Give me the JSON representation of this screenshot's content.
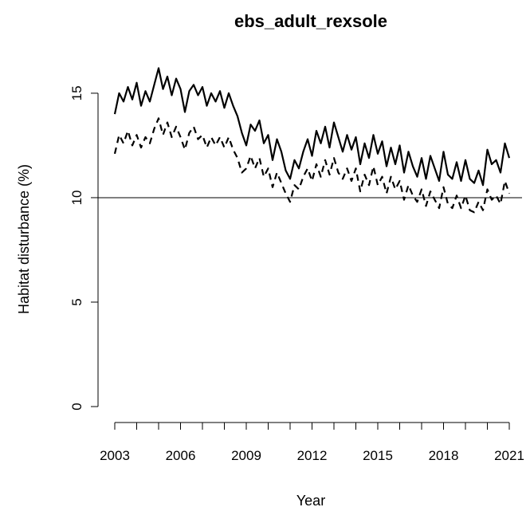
{
  "chart_data": {
    "type": "line",
    "title": "ebs_adult_rexsole",
    "xlabel": "Year",
    "ylabel": "Habitat disturbance (%)",
    "xlim": [
      2002.9,
      2021.2
    ],
    "ylim": [
      0,
      16.6
    ],
    "x_ticks": [
      "2003",
      "2006",
      "2009",
      "2012",
      "2015",
      "2018",
      "2021"
    ],
    "y_ticks": [
      "0",
      "5",
      "10",
      "15"
    ],
    "reference_line_y": 10,
    "grid": false,
    "legend": "none",
    "series": [
      {
        "style": "solid",
        "x": [
          2003.0,
          2003.2,
          2003.4,
          2003.6,
          2003.8,
          2004.0,
          2004.2,
          2004.4,
          2004.6,
          2004.8,
          2005.0,
          2005.2,
          2005.4,
          2005.6,
          2005.8,
          2006.0,
          2006.2,
          2006.4,
          2006.6,
          2006.8,
          2007.0,
          2007.2,
          2007.4,
          2007.6,
          2007.8,
          2008.0,
          2008.2,
          2008.4,
          2008.6,
          2008.8,
          2009.0,
          2009.2,
          2009.4,
          2009.6,
          2009.8,
          2010.0,
          2010.2,
          2010.4,
          2010.6,
          2010.8,
          2011.0,
          2011.2,
          2011.4,
          2011.6,
          2011.8,
          2012.0,
          2012.2,
          2012.4,
          2012.6,
          2012.8,
          2013.0,
          2013.2,
          2013.4,
          2013.6,
          2013.8,
          2014.0,
          2014.2,
          2014.4,
          2014.6,
          2014.8,
          2015.0,
          2015.2,
          2015.4,
          2015.6,
          2015.8,
          2016.0,
          2016.2,
          2016.4,
          2016.6,
          2016.8,
          2017.0,
          2017.2,
          2017.4,
          2017.6,
          2017.8,
          2018.0,
          2018.2,
          2018.4,
          2018.6,
          2018.8,
          2019.0,
          2019.2,
          2019.4,
          2019.6,
          2019.8,
          2020.0,
          2020.2,
          2020.4,
          2020.6,
          2020.8,
          2021.0
        ],
        "values": [
          14.0,
          15.0,
          14.6,
          15.3,
          14.7,
          15.5,
          14.4,
          15.1,
          14.6,
          15.4,
          16.2,
          15.2,
          15.8,
          14.9,
          15.7,
          15.2,
          14.1,
          15.1,
          15.4,
          14.9,
          15.3,
          14.4,
          15.0,
          14.6,
          15.1,
          14.3,
          15.0,
          14.4,
          13.9,
          13.1,
          12.5,
          13.5,
          13.2,
          13.7,
          12.6,
          13.0,
          11.8,
          12.8,
          12.2,
          11.3,
          10.9,
          11.8,
          11.4,
          12.2,
          12.8,
          12.0,
          13.2,
          12.6,
          13.4,
          12.4,
          13.6,
          12.9,
          12.2,
          13.0,
          12.3,
          12.9,
          11.6,
          12.6,
          11.9,
          13.0,
          12.1,
          12.7,
          11.5,
          12.4,
          11.6,
          12.5,
          11.2,
          12.2,
          11.5,
          11.0,
          11.9,
          10.9,
          12.0,
          11.4,
          10.8,
          12.2,
          11.1,
          10.9,
          11.7,
          10.8,
          11.8,
          10.9,
          10.7,
          11.3,
          10.6,
          12.3,
          11.6,
          11.8,
          11.2,
          12.6,
          11.9
        ]
      },
      {
        "style": "dashed",
        "x": [
          2003.0,
          2003.2,
          2003.4,
          2003.6,
          2003.8,
          2004.0,
          2004.2,
          2004.4,
          2004.6,
          2004.8,
          2005.0,
          2005.2,
          2005.4,
          2005.6,
          2005.8,
          2006.0,
          2006.2,
          2006.4,
          2006.6,
          2006.8,
          2007.0,
          2007.2,
          2007.4,
          2007.6,
          2007.8,
          2008.0,
          2008.2,
          2008.4,
          2008.6,
          2008.8,
          2009.0,
          2009.2,
          2009.4,
          2009.6,
          2009.8,
          2010.0,
          2010.2,
          2010.4,
          2010.6,
          2010.8,
          2011.0,
          2011.2,
          2011.4,
          2011.6,
          2011.8,
          2012.0,
          2012.2,
          2012.4,
          2012.6,
          2012.8,
          2013.0,
          2013.2,
          2013.4,
          2013.6,
          2013.8,
          2014.0,
          2014.2,
          2014.4,
          2014.6,
          2014.8,
          2015.0,
          2015.2,
          2015.4,
          2015.6,
          2015.8,
          2016.0,
          2016.2,
          2016.4,
          2016.6,
          2016.8,
          2017.0,
          2017.2,
          2017.4,
          2017.6,
          2017.8,
          2018.0,
          2018.2,
          2018.4,
          2018.6,
          2018.8,
          2019.0,
          2019.2,
          2019.4,
          2019.6,
          2019.8,
          2020.0,
          2020.2,
          2020.4,
          2020.6,
          2020.8,
          2021.0
        ],
        "values": [
          12.1,
          13.0,
          12.6,
          13.2,
          12.5,
          13.0,
          12.4,
          12.9,
          12.6,
          13.3,
          13.8,
          13.0,
          13.6,
          12.9,
          13.4,
          12.9,
          12.3,
          13.1,
          13.4,
          12.8,
          13.0,
          12.4,
          12.9,
          12.5,
          12.9,
          12.4,
          12.9,
          12.3,
          11.9,
          11.2,
          11.4,
          12.0,
          11.4,
          11.9,
          11.0,
          11.4,
          10.5,
          11.2,
          10.7,
          10.2,
          9.8,
          10.6,
          10.4,
          11.0,
          11.4,
          10.8,
          11.6,
          11.0,
          11.8,
          11.1,
          11.9,
          11.2,
          10.9,
          11.4,
          10.8,
          11.4,
          10.3,
          11.1,
          10.6,
          11.5,
          10.6,
          11.0,
          10.2,
          11.0,
          10.4,
          10.8,
          9.9,
          10.6,
          10.1,
          9.8,
          10.4,
          9.6,
          10.3,
          9.9,
          9.5,
          10.5,
          9.7,
          9.5,
          10.1,
          9.5,
          10.1,
          9.4,
          9.3,
          9.8,
          9.4,
          10.4,
          9.9,
          10.1,
          9.7,
          10.8,
          10.2
        ]
      }
    ]
  }
}
